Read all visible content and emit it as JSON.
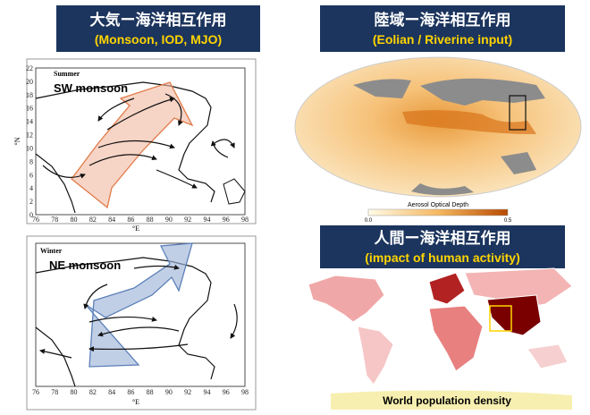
{
  "left_panel": {
    "header": {
      "title": "大気ー海洋相互作用",
      "subtitle": "(Monsoon, IOD, MJO)"
    },
    "summer_map": {
      "season": "Summer",
      "label": "SW monsoon",
      "y_axis_label": "°N",
      "x_axis_label": "°E",
      "y_ticks": [
        0,
        2,
        4,
        6,
        8,
        10,
        12,
        14,
        16,
        18,
        20,
        22
      ],
      "x_ticks": [
        76,
        78,
        80,
        82,
        84,
        86,
        88,
        90,
        92,
        94,
        96,
        98
      ]
    },
    "winter_map": {
      "season": "Winter",
      "label": "NE monsoon",
      "x_axis_label": "°E",
      "x_ticks": [
        76,
        78,
        80,
        82,
        84,
        86,
        88,
        90,
        92,
        94,
        96,
        98
      ]
    }
  },
  "right_panel": {
    "aerosol": {
      "header": {
        "title": "陸域ー海洋相互作用",
        "subtitle": "(Eolian / Riverine input)"
      },
      "colorbar": {
        "title": "Aerosol Optical Depth",
        "min_label": "0.0",
        "max_label": "0.5"
      }
    },
    "population": {
      "header": {
        "title": "人間ー海洋相互作用",
        "subtitle": "(impact of human activity)"
      },
      "caption": "World population density"
    }
  }
}
